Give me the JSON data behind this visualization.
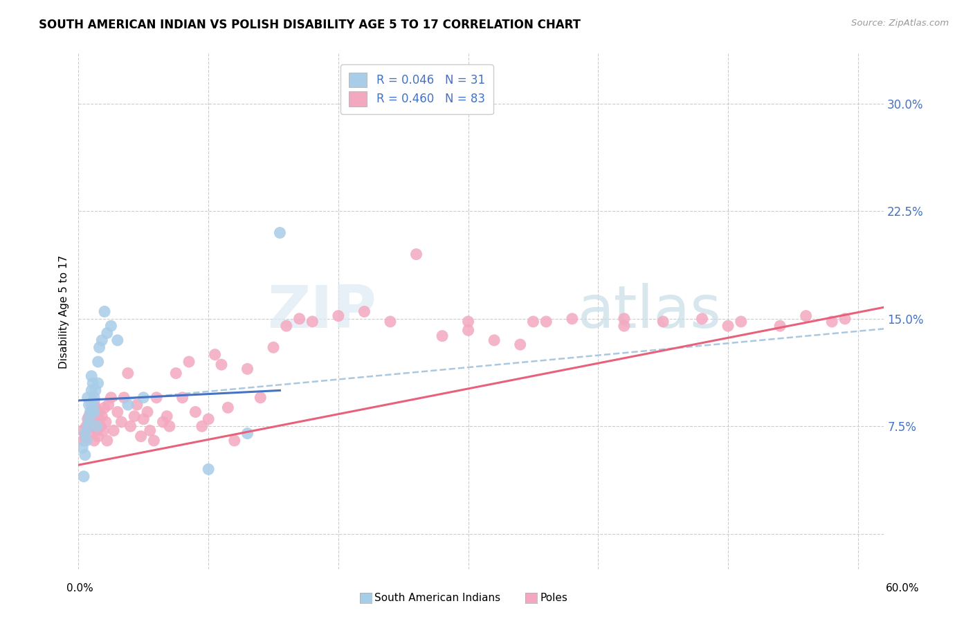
{
  "title": "SOUTH AMERICAN INDIAN VS POLISH DISABILITY AGE 5 TO 17 CORRELATION CHART",
  "source": "Source: ZipAtlas.com",
  "ylabel": "Disability Age 5 to 17",
  "ytick_values": [
    0.0,
    0.075,
    0.15,
    0.225,
    0.3
  ],
  "xtick_values": [
    0.0,
    0.1,
    0.2,
    0.3,
    0.4,
    0.5,
    0.6
  ],
  "xmin": 0.0,
  "xmax": 0.62,
  "ymin": -0.025,
  "ymax": 0.335,
  "color_blue": "#a8cde8",
  "color_pink": "#f4a8c0",
  "color_blue_line": "#4472c4",
  "color_pink_line": "#e8607a",
  "color_dashed": "#aac8e0",
  "watermark_zip_color": "#dce8f0",
  "watermark_atlas_color": "#c8dce8",
  "south_american_x": [
    0.003,
    0.004,
    0.005,
    0.005,
    0.006,
    0.007,
    0.007,
    0.008,
    0.008,
    0.009,
    0.01,
    0.01,
    0.011,
    0.011,
    0.012,
    0.012,
    0.013,
    0.014,
    0.015,
    0.015,
    0.016,
    0.018,
    0.02,
    0.022,
    0.025,
    0.03,
    0.038,
    0.05,
    0.1,
    0.13,
    0.155
  ],
  "south_american_y": [
    0.06,
    0.04,
    0.055,
    0.07,
    0.065,
    0.075,
    0.095,
    0.08,
    0.09,
    0.085,
    0.1,
    0.11,
    0.09,
    0.105,
    0.085,
    0.095,
    0.1,
    0.075,
    0.105,
    0.12,
    0.13,
    0.135,
    0.155,
    0.14,
    0.145,
    0.135,
    0.09,
    0.095,
    0.045,
    0.07,
    0.21
  ],
  "poles_x": [
    0.003,
    0.004,
    0.005,
    0.006,
    0.007,
    0.008,
    0.008,
    0.009,
    0.01,
    0.01,
    0.011,
    0.011,
    0.012,
    0.012,
    0.013,
    0.013,
    0.014,
    0.015,
    0.015,
    0.016,
    0.017,
    0.018,
    0.019,
    0.02,
    0.021,
    0.022,
    0.023,
    0.025,
    0.027,
    0.03,
    0.033,
    0.035,
    0.038,
    0.04,
    0.043,
    0.045,
    0.048,
    0.05,
    0.053,
    0.055,
    0.058,
    0.06,
    0.065,
    0.068,
    0.07,
    0.075,
    0.08,
    0.085,
    0.09,
    0.095,
    0.1,
    0.105,
    0.11,
    0.115,
    0.12,
    0.13,
    0.14,
    0.15,
    0.16,
    0.17,
    0.18,
    0.2,
    0.22,
    0.24,
    0.26,
    0.28,
    0.3,
    0.32,
    0.34,
    0.36,
    0.38,
    0.42,
    0.45,
    0.48,
    0.51,
    0.54,
    0.56,
    0.58,
    0.59,
    0.35,
    0.3,
    0.42,
    0.5
  ],
  "poles_y": [
    0.072,
    0.065,
    0.068,
    0.075,
    0.08,
    0.082,
    0.07,
    0.078,
    0.085,
    0.09,
    0.088,
    0.075,
    0.092,
    0.065,
    0.078,
    0.088,
    0.072,
    0.08,
    0.068,
    0.085,
    0.075,
    0.082,
    0.072,
    0.088,
    0.078,
    0.065,
    0.09,
    0.095,
    0.072,
    0.085,
    0.078,
    0.095,
    0.112,
    0.075,
    0.082,
    0.09,
    0.068,
    0.08,
    0.085,
    0.072,
    0.065,
    0.095,
    0.078,
    0.082,
    0.075,
    0.112,
    0.095,
    0.12,
    0.085,
    0.075,
    0.08,
    0.125,
    0.118,
    0.088,
    0.065,
    0.115,
    0.095,
    0.13,
    0.145,
    0.15,
    0.148,
    0.152,
    0.155,
    0.148,
    0.195,
    0.138,
    0.142,
    0.135,
    0.132,
    0.148,
    0.15,
    0.145,
    0.148,
    0.15,
    0.148,
    0.145,
    0.152,
    0.148,
    0.15,
    0.148,
    0.148,
    0.15,
    0.145
  ],
  "blue_line_x": [
    0.0,
    0.155
  ],
  "blue_line_y": [
    0.093,
    0.1
  ],
  "dashed_line_x": [
    0.025,
    0.62
  ],
  "dashed_line_y": [
    0.093,
    0.143
  ],
  "pink_line_x": [
    0.0,
    0.62
  ],
  "pink_line_y": [
    0.048,
    0.158
  ]
}
